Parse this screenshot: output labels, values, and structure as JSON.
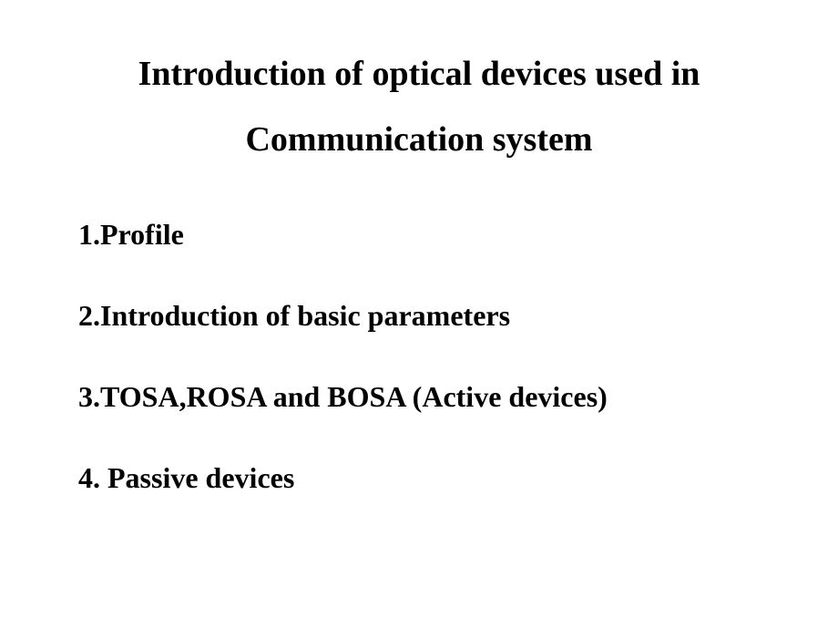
{
  "slide": {
    "background_color": "#ffffff",
    "text_color": "#000000",
    "font_family": "Times New Roman",
    "title": {
      "line1": "Introduction of optical devices used in",
      "line2": "Communication system",
      "font_size": 38,
      "font_weight": "bold",
      "align": "center"
    },
    "items": [
      "1.Profile",
      "2.Introduction of basic parameters",
      "3.TOSA,ROSA and BOSA (Active devices)",
      "4. Passive devices"
    ],
    "item_font_size": 32,
    "item_font_weight": "bold"
  }
}
